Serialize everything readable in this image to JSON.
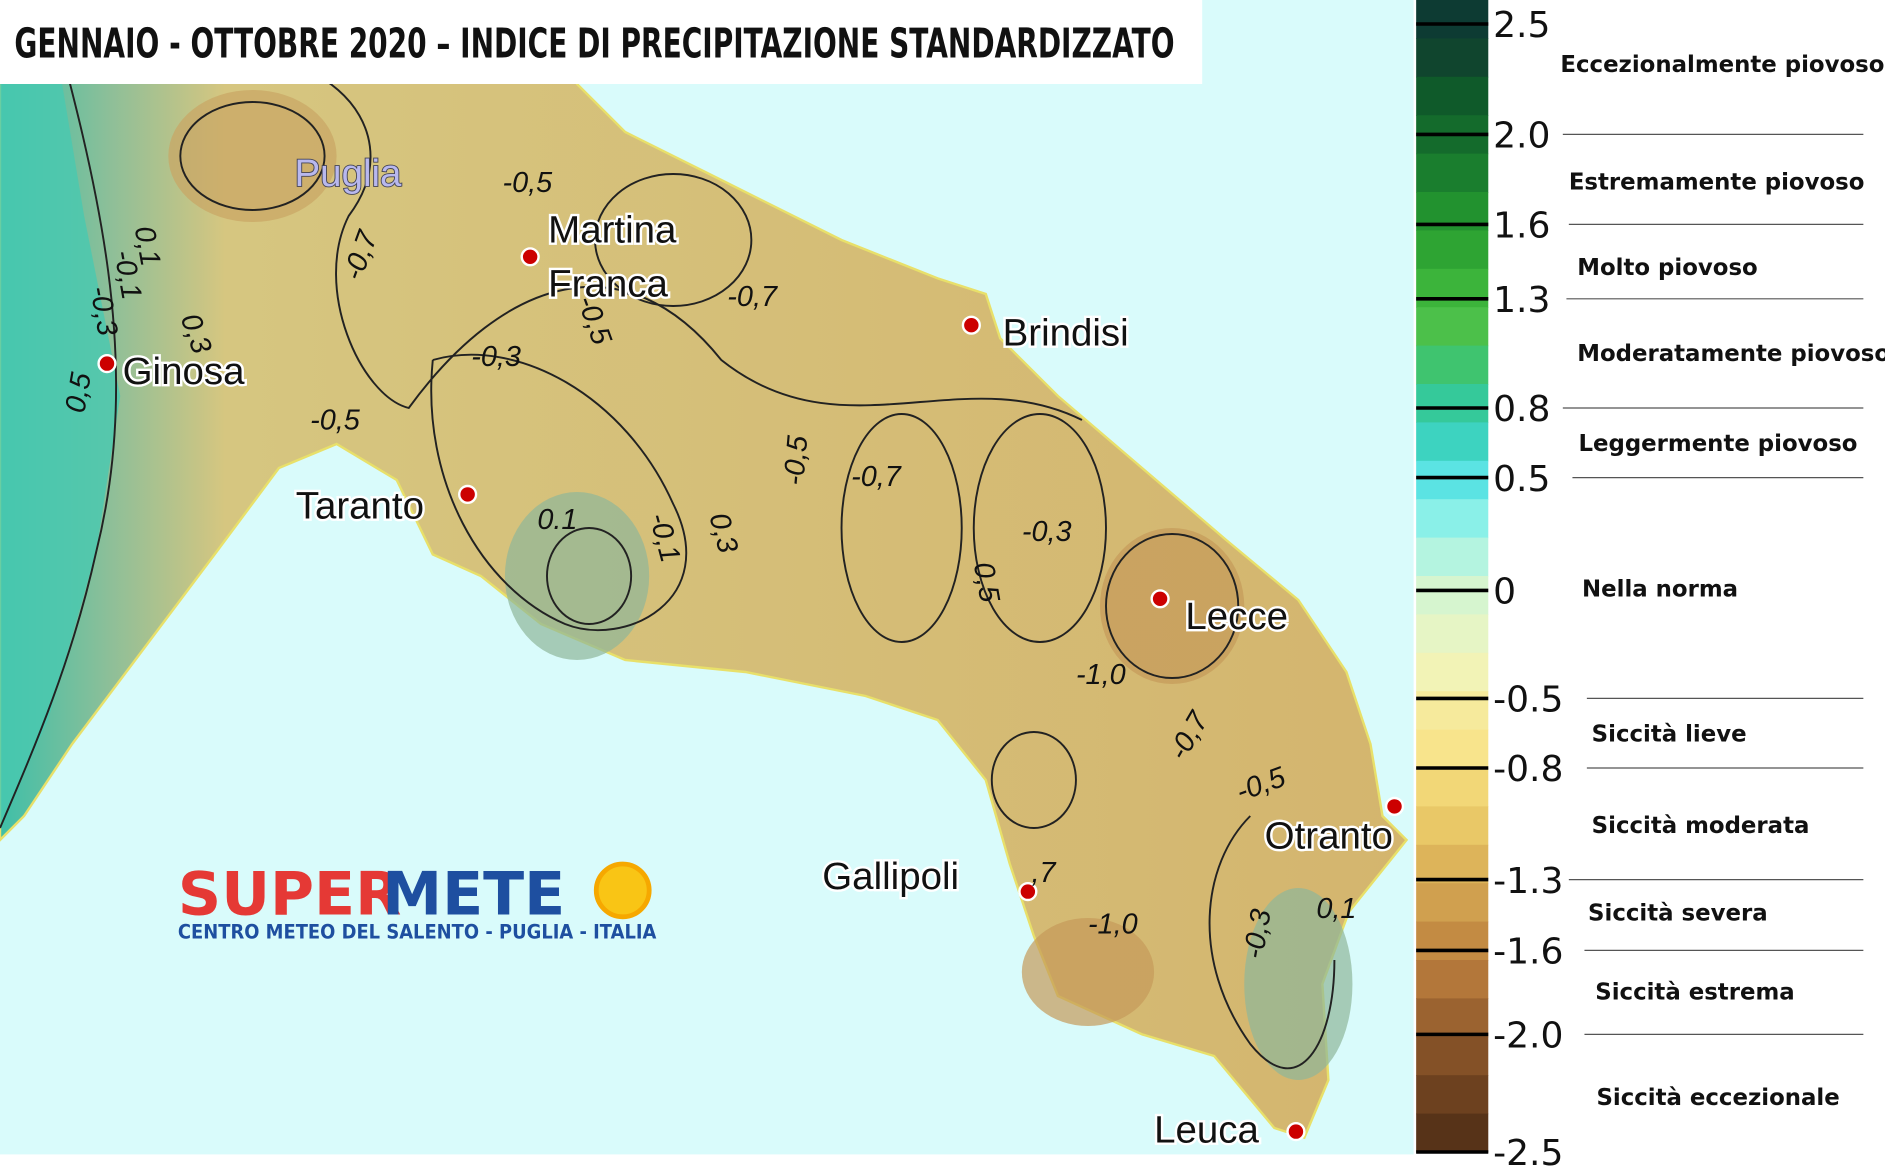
{
  "header": {
    "title": "GENNAIO - OTTOBRE 2020 – INDICE DI PRECIPITAZIONE STANDARDIZZATO"
  },
  "map": {
    "region_label": "Puglia",
    "cities": [
      {
        "lines": [
          "Martina",
          "Franca"
        ]
      },
      {
        "lines": [
          "Brindisi"
        ]
      },
      {
        "lines": [
          "Ginosa"
        ]
      },
      {
        "lines": [
          "Taranto"
        ]
      },
      {
        "lines": [
          "Lecce"
        ]
      },
      {
        "lines": [
          "Otranto"
        ]
      },
      {
        "lines": [
          "Gallipoli"
        ]
      },
      {
        "lines": [
          "Leuca"
        ]
      }
    ],
    "contour_labels": [
      "-0,5",
      "-0,7",
      "0,1",
      "-0,1",
      "-0,3",
      "0,3",
      "0,5",
      "-0,5",
      "-0,3",
      "-0,5",
      "-0,7",
      "-0,5",
      "-0,7",
      "0.1",
      "-0,1",
      "0,3",
      "-0,3",
      "0,5",
      "-1,0",
      "-0,7",
      "-0,5",
      ",7",
      "-1,0",
      "-0,3",
      "0,1"
    ]
  },
  "legend": {
    "ticks": [
      "2.5",
      "2.0",
      "1.6",
      "1.3",
      "0.8",
      "0.5",
      "0",
      "-0.5",
      "-0.8",
      "-1.3",
      "-1.6",
      "-2.0",
      "-2.5"
    ],
    "classes": [
      "Eccezionalmente piovoso",
      "Estremamente piovoso",
      "Molto piovoso",
      "Moderatamente piovoso",
      "Leggermente piovoso",
      "Nella norma",
      "Siccità lieve",
      "Siccità moderata",
      "Siccità severa",
      "Siccità estrema",
      "Siccità eccezionale"
    ]
  },
  "logo": {
    "brand_red": "SUPER",
    "brand_blue": "METE",
    "tagline": "CENTRO METEO DEL SALENTO - PUGLIA - ITALIA"
  }
}
